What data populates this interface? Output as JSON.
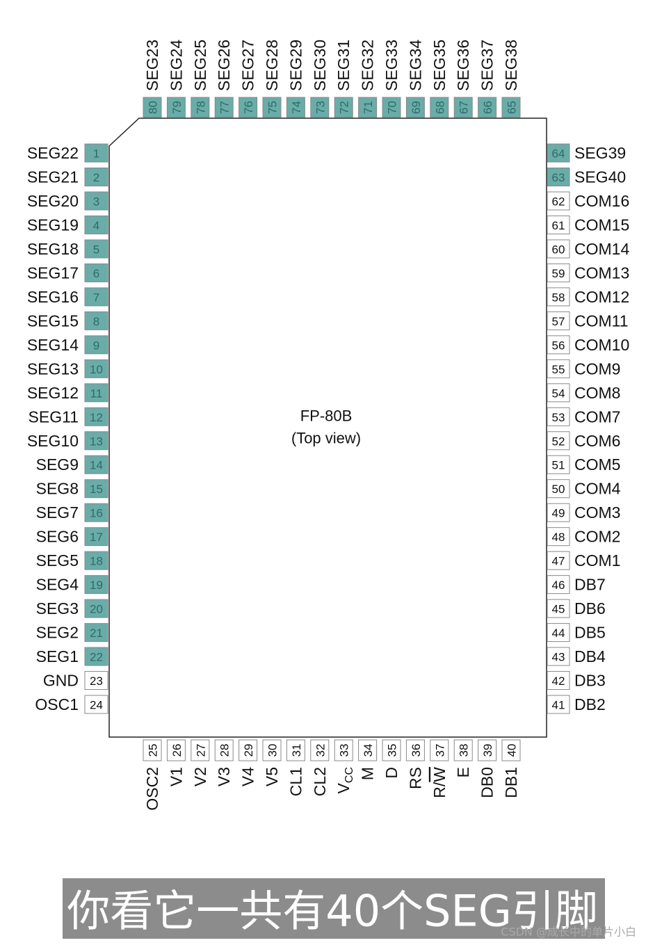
{
  "center": {
    "title": "FP-80B",
    "subtitle": "(Top view)"
  },
  "pins": {
    "left": [
      {
        "number": 1,
        "label": "SEG22",
        "color": "#6aaca8"
      },
      {
        "number": 2,
        "label": "SEG21",
        "color": "#6aaca8"
      },
      {
        "number": 3,
        "label": "SEG20",
        "color": "#6aaca8"
      },
      {
        "number": 4,
        "label": "SEG19",
        "color": "#6aaca8"
      },
      {
        "number": 5,
        "label": "SEG18",
        "color": "#6aaca8"
      },
      {
        "number": 6,
        "label": "SEG17",
        "color": "#6aaca8"
      },
      {
        "number": 7,
        "label": "SEG16",
        "color": "#6aaca8"
      },
      {
        "number": 8,
        "label": "SEG15",
        "color": "#6aaca8"
      },
      {
        "number": 9,
        "label": "SEG14",
        "color": "#6aaca8"
      },
      {
        "number": 10,
        "label": "SEG13",
        "color": "#6aaca8"
      },
      {
        "number": 11,
        "label": "SEG12",
        "color": "#6aaca8"
      },
      {
        "number": 12,
        "label": "SEG11",
        "color": "#6aaca8"
      },
      {
        "number": 13,
        "label": "SEG10",
        "color": "#6aaca8"
      },
      {
        "number": 14,
        "label": "SEG9",
        "color": "#6aaca8"
      },
      {
        "number": 15,
        "label": "SEG8",
        "color": "#6aaca8"
      },
      {
        "number": 16,
        "label": "SEG7",
        "color": "#6aaca8"
      },
      {
        "number": 17,
        "label": "SEG6",
        "color": "#6aaca8"
      },
      {
        "number": 18,
        "label": "SEG5",
        "color": "#6aaca8"
      },
      {
        "number": 19,
        "label": "SEG4",
        "color": "#6aaca8"
      },
      {
        "number": 20,
        "label": "SEG3",
        "color": "#6aaca8"
      },
      {
        "number": 21,
        "label": "SEG2",
        "color": "#6aaca8"
      },
      {
        "number": 22,
        "label": "SEG1",
        "color": "#6aaca8"
      },
      {
        "number": 23,
        "label": "GND",
        "color": "#ffffff"
      },
      {
        "number": 24,
        "label": "OSC1",
        "color": "#ffffff"
      }
    ],
    "right": [
      {
        "number": 64,
        "label": "SEG39",
        "color": "#6aaca8"
      },
      {
        "number": 63,
        "label": "SEG40",
        "color": "#6aaca8"
      },
      {
        "number": 62,
        "label": "COM16",
        "color": "#ffffff"
      },
      {
        "number": 61,
        "label": "COM15",
        "color": "#ffffff"
      },
      {
        "number": 60,
        "label": "COM14",
        "color": "#ffffff"
      },
      {
        "number": 59,
        "label": "COM13",
        "color": "#ffffff"
      },
      {
        "number": 58,
        "label": "COM12",
        "color": "#ffffff"
      },
      {
        "number": 57,
        "label": "COM11",
        "color": "#ffffff"
      },
      {
        "number": 56,
        "label": "COM10",
        "color": "#ffffff"
      },
      {
        "number": 55,
        "label": "COM9",
        "color": "#ffffff"
      },
      {
        "number": 54,
        "label": "COM8",
        "color": "#ffffff"
      },
      {
        "number": 53,
        "label": "COM7",
        "color": "#ffffff"
      },
      {
        "number": 52,
        "label": "COM6",
        "color": "#ffffff"
      },
      {
        "number": 51,
        "label": "COM5",
        "color": "#ffffff"
      },
      {
        "number": 50,
        "label": "COM4",
        "color": "#ffffff"
      },
      {
        "number": 49,
        "label": "COM3",
        "color": "#ffffff"
      },
      {
        "number": 48,
        "label": "COM2",
        "color": "#ffffff"
      },
      {
        "number": 47,
        "label": "COM1",
        "color": "#ffffff"
      },
      {
        "number": 46,
        "label": "DB7",
        "color": "#ffffff"
      },
      {
        "number": 45,
        "label": "DB6",
        "color": "#ffffff"
      },
      {
        "number": 44,
        "label": "DB5",
        "color": "#ffffff"
      },
      {
        "number": 43,
        "label": "DB4",
        "color": "#ffffff"
      },
      {
        "number": 42,
        "label": "DB3",
        "color": "#ffffff"
      },
      {
        "number": 41,
        "label": "DB2",
        "color": "#ffffff"
      }
    ],
    "top": [
      {
        "number": 80,
        "label": "SEG23",
        "color": "#6aaca8"
      },
      {
        "number": 79,
        "label": "SEG24",
        "color": "#6aaca8"
      },
      {
        "number": 78,
        "label": "SEG25",
        "color": "#6aaca8"
      },
      {
        "number": 77,
        "label": "SEG26",
        "color": "#6aaca8"
      },
      {
        "number": 76,
        "label": "SEG27",
        "color": "#6aaca8"
      },
      {
        "number": 75,
        "label": "SEG28",
        "color": "#6aaca8"
      },
      {
        "number": 74,
        "label": "SEG29",
        "color": "#6aaca8"
      },
      {
        "number": 73,
        "label": "SEG30",
        "color": "#6aaca8"
      },
      {
        "number": 72,
        "label": "SEG31",
        "color": "#6aaca8"
      },
      {
        "number": 71,
        "label": "SEG32",
        "color": "#6aaca8"
      },
      {
        "number": 70,
        "label": "SEG33",
        "color": "#6aaca8"
      },
      {
        "number": 69,
        "label": "SEG34",
        "color": "#6aaca8"
      },
      {
        "number": 68,
        "label": "SEG35",
        "color": "#6aaca8"
      },
      {
        "number": 67,
        "label": "SEG36",
        "color": "#6aaca8"
      },
      {
        "number": 66,
        "label": "SEG37",
        "color": "#6aaca8"
      },
      {
        "number": 65,
        "label": "SEG38",
        "color": "#6aaca8"
      }
    ],
    "bottom": [
      {
        "number": 25,
        "label": "OSC2",
        "color": "#ffffff"
      },
      {
        "number": 26,
        "label": "V1",
        "color": "#ffffff"
      },
      {
        "number": 27,
        "label": "V2",
        "color": "#ffffff"
      },
      {
        "number": 28,
        "label": "V3",
        "color": "#ffffff"
      },
      {
        "number": 29,
        "label": "V4",
        "color": "#ffffff"
      },
      {
        "number": 30,
        "label": "V5",
        "color": "#ffffff"
      },
      {
        "number": 31,
        "label": "CL1",
        "color": "#ffffff"
      },
      {
        "number": 32,
        "label": "CL2",
        "color": "#ffffff"
      },
      {
        "number": 33,
        "label": "V",
        "label_sub": "CC",
        "color": "#ffffff"
      },
      {
        "number": 34,
        "label": "M",
        "color": "#ffffff"
      },
      {
        "number": 35,
        "label": "D",
        "color": "#ffffff"
      },
      {
        "number": 36,
        "label": "RS",
        "color": "#ffffff"
      },
      {
        "number": 37,
        "label": "R/",
        "label_over": "W",
        "color": "#ffffff"
      },
      {
        "number": 38,
        "label": "E",
        "color": "#ffffff"
      },
      {
        "number": 39,
        "label": "DB0",
        "color": "#ffffff"
      },
      {
        "number": 40,
        "label": "DB1",
        "color": "#ffffff"
      }
    ]
  },
  "caption": "你看它一共有40个SEG引脚",
  "watermark": "CSDN @成长中的单片小白"
}
